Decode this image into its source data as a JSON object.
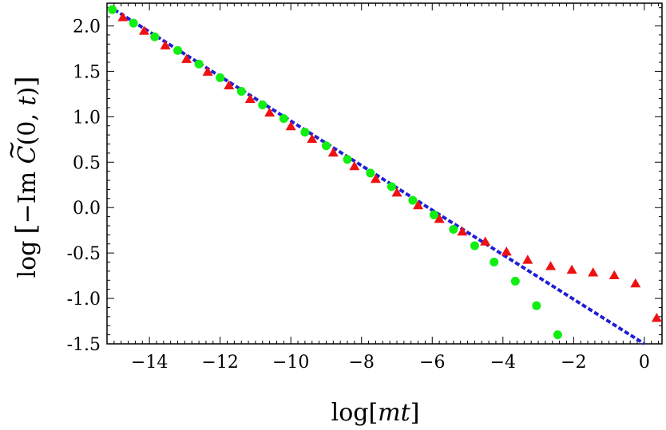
{
  "chart_data": {
    "type": "scatter",
    "xlabel_parts": [
      "log[",
      "mt",
      "]"
    ],
    "ylabel_parts": [
      "log",
      "[",
      "−Im",
      " C",
      "(0, ",
      "t",
      ")",
      "]"
    ],
    "ylabel_tilde": "~",
    "xlim": [
      -15.2,
      0.5
    ],
    "ylim": [
      -1.5,
      2.25
    ],
    "x_ticks": [
      -14,
      -12,
      -10,
      -8,
      -6,
      -4,
      -2,
      0
    ],
    "x_tick_labels": [
      "−14",
      "−12",
      "−10",
      "−8",
      "−6",
      "−4",
      "−2",
      "0"
    ],
    "y_ticks": [
      2.0,
      1.5,
      1.0,
      0.5,
      0.0,
      -0.5,
      -1.0,
      -1.5
    ],
    "y_tick_labels": [
      "2.0",
      "1.5",
      "1.0",
      "0.5",
      "0.0",
      "-0.5",
      "-1.0",
      "-1.5"
    ],
    "fit_line": {
      "style": "dashed",
      "color": "#1f1fd6",
      "points": [
        [
          -15.0,
          2.18
        ],
        [
          0.0,
          -1.5
        ]
      ]
    },
    "series": [
      {
        "marker": "triangle",
        "color": "#ee1111",
        "points": [
          [
            -14.75,
            2.09
          ],
          [
            -14.15,
            1.94
          ],
          [
            -13.55,
            1.78
          ],
          [
            -12.95,
            1.63
          ],
          [
            -12.35,
            1.49
          ],
          [
            -11.75,
            1.34
          ],
          [
            -11.15,
            1.19
          ],
          [
            -10.6,
            1.04
          ],
          [
            -10.0,
            0.89
          ],
          [
            -9.4,
            0.75
          ],
          [
            -8.8,
            0.6
          ],
          [
            -8.2,
            0.45
          ],
          [
            -7.6,
            0.31
          ],
          [
            -7.0,
            0.16
          ],
          [
            -6.4,
            0.02
          ],
          [
            -5.8,
            -0.13
          ],
          [
            -5.15,
            -0.27
          ],
          [
            -4.5,
            -0.38
          ],
          [
            -3.9,
            -0.49
          ],
          [
            -3.3,
            -0.58
          ],
          [
            -2.65,
            -0.65
          ],
          [
            -2.05,
            -0.69
          ],
          [
            -1.45,
            -0.72
          ],
          [
            -0.85,
            -0.75
          ],
          [
            -0.25,
            -0.84
          ],
          [
            0.35,
            -1.22
          ]
        ]
      },
      {
        "marker": "circle",
        "color": "#11ee11",
        "points": [
          [
            -15.05,
            2.18
          ],
          [
            -14.45,
            2.03
          ],
          [
            -13.85,
            1.88
          ],
          [
            -13.2,
            1.73
          ],
          [
            -12.6,
            1.58
          ],
          [
            -12.0,
            1.43
          ],
          [
            -11.4,
            1.28
          ],
          [
            -10.8,
            1.13
          ],
          [
            -10.2,
            0.98
          ],
          [
            -9.6,
            0.83
          ],
          [
            -9.0,
            0.68
          ],
          [
            -8.4,
            0.53
          ],
          [
            -7.75,
            0.38
          ],
          [
            -7.15,
            0.23
          ],
          [
            -6.55,
            0.08
          ],
          [
            -5.95,
            -0.08
          ],
          [
            -5.4,
            -0.24
          ],
          [
            -4.8,
            -0.42
          ],
          [
            -4.25,
            -0.6
          ],
          [
            -3.65,
            -0.81
          ],
          [
            -3.05,
            -1.08
          ],
          [
            -2.45,
            -1.4
          ]
        ]
      }
    ]
  }
}
